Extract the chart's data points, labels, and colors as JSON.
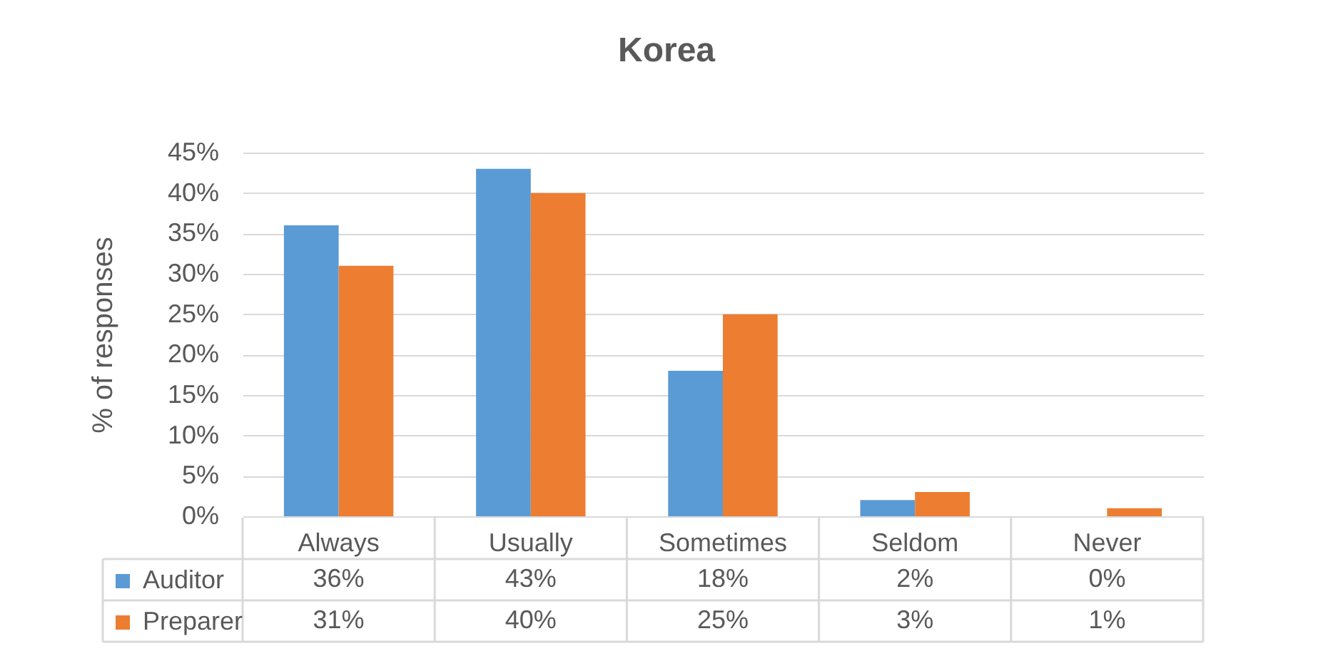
{
  "chart_data": {
    "type": "bar",
    "title": "Korea",
    "ylabel": "% of responses",
    "categories": [
      "Always",
      "Usually",
      "Sometimes",
      "Seldom",
      "Never"
    ],
    "series": [
      {
        "name": "Auditor",
        "color": "#5b9bd5",
        "values": [
          36,
          43,
          18,
          2,
          0
        ],
        "value_labels": [
          "36%",
          "43%",
          "18%",
          "2%",
          "0%"
        ]
      },
      {
        "name": "Preparer",
        "color": "#ed7d31",
        "values": [
          31,
          40,
          25,
          3,
          1
        ],
        "value_labels": [
          "31%",
          "40%",
          "25%",
          "3%",
          "1%"
        ]
      }
    ],
    "ylim": [
      0,
      45
    ],
    "yticks": [
      {
        "value": 0,
        "label": "0%"
      },
      {
        "value": 5,
        "label": "5%"
      },
      {
        "value": 10,
        "label": "10%"
      },
      {
        "value": 15,
        "label": "15%"
      },
      {
        "value": 20,
        "label": "20%"
      },
      {
        "value": 25,
        "label": "25%"
      },
      {
        "value": 30,
        "label": "30%"
      },
      {
        "value": 35,
        "label": "35%"
      },
      {
        "value": 40,
        "label": "40%"
      },
      {
        "value": 45,
        "label": "45%"
      }
    ],
    "grid": "y",
    "legend": "bottom left"
  }
}
